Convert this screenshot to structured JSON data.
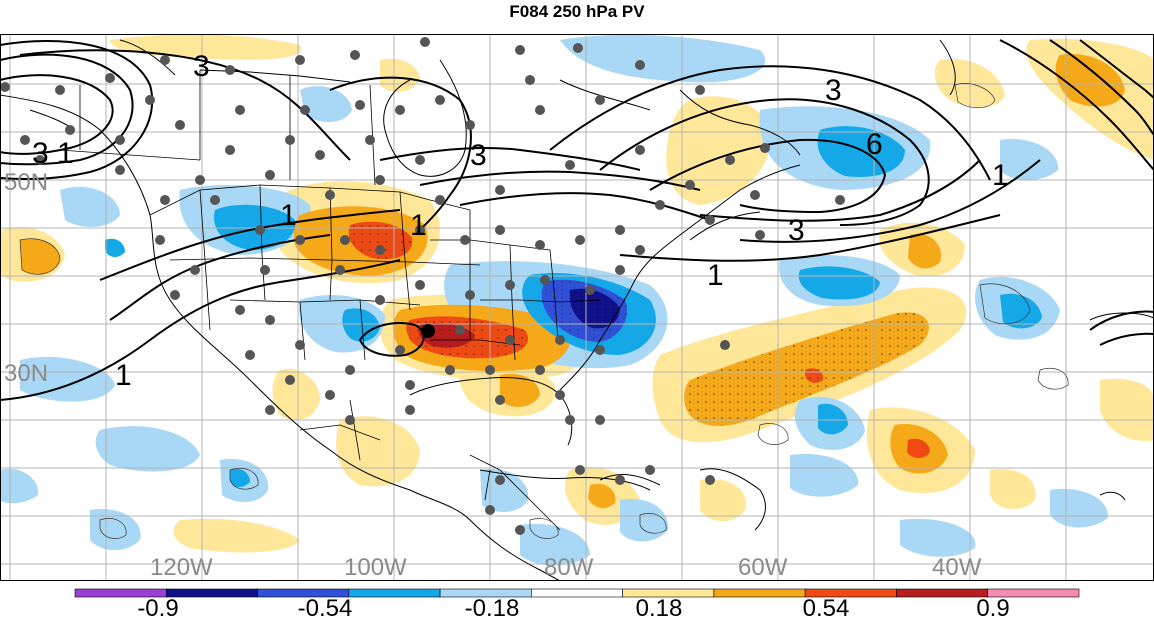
{
  "title": "F084 250 hPa PV",
  "lat_labels": [
    "50N",
    "30N"
  ],
  "lon_labels": [
    "120W",
    "100W",
    "80W",
    "60W",
    "40W"
  ],
  "contour_labels": [
    "3",
    "3",
    "1",
    "1",
    "3",
    "3",
    "6",
    "1",
    "3",
    "1",
    "1",
    "1"
  ],
  "colorbar": {
    "ticks": [
      "-0.9",
      "-0.54",
      "-0.18",
      "0.18",
      "0.54",
      "0.9"
    ],
    "colors": [
      "#9a3fd6",
      "#10108a",
      "#3150d8",
      "#14a8e8",
      "#a8d8f5",
      "#ffffff",
      "#ffe79a",
      "#f5a818",
      "#ef4a14",
      "#b81c1c",
      "#f58cb4"
    ]
  },
  "legend_colors": {
    "neg_strong": "#10108a",
    "neg_mid": "#3150d8",
    "neg_light": "#14a8e8",
    "neg_faint": "#a8d8f5",
    "pos_faint": "#ffe79a",
    "pos_light": "#f5a818",
    "pos_mid": "#ef4a14",
    "pos_strong": "#b81c1c"
  }
}
